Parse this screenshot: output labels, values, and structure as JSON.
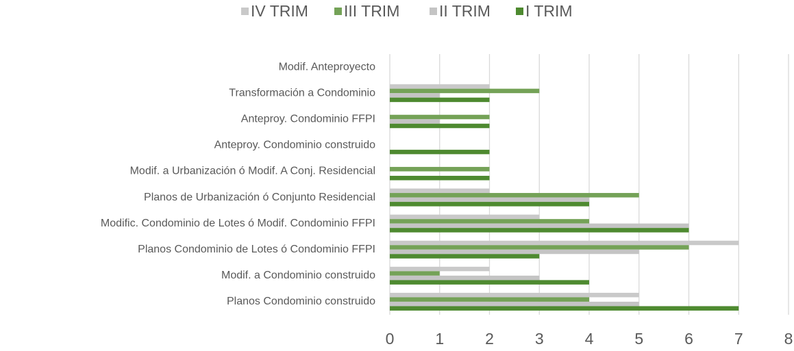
{
  "chart_data": {
    "type": "hbar",
    "categories": [
      "Modif. Anteproyecto",
      "Transformación a Condominio",
      "Anteproy. Condominio FFPI",
      "Anteproy. Condominio construido",
      "Modif. a Urbanización ó Modif. A Conj. Residencial",
      "Planos de Urbanización ó Conjunto Residencial",
      "Modific. Condominio de Lotes ó Modif. Condominio FFPI",
      "Planos Condominio de Lotes ó Condominio FFPI",
      "Modif. a Condominio construido",
      "Planos Condominio construido"
    ],
    "series": [
      {
        "name": "IV TRIM",
        "color": "#c9c9c9",
        "values": [
          0,
          2,
          0,
          0,
          0,
          2,
          3,
          7,
          2,
          5
        ]
      },
      {
        "name": "III TRIM",
        "color": "#74a257",
        "values": [
          0,
          3,
          2,
          0,
          2,
          5,
          4,
          6,
          1,
          4
        ]
      },
      {
        "name": "II TRIM",
        "color": "#c4c4c4",
        "values": [
          0,
          1,
          1,
          0,
          0,
          4,
          6,
          5,
          3,
          5
        ]
      },
      {
        "name": "I TRIM",
        "color": "#4e8a30",
        "values": [
          0,
          2,
          2,
          2,
          2,
          4,
          6,
          3,
          4,
          7
        ]
      }
    ],
    "xlim": [
      0,
      8
    ],
    "xticks": [
      0,
      1,
      2,
      3,
      4,
      5,
      6,
      7,
      8
    ],
    "grid": true,
    "legend": "top"
  }
}
